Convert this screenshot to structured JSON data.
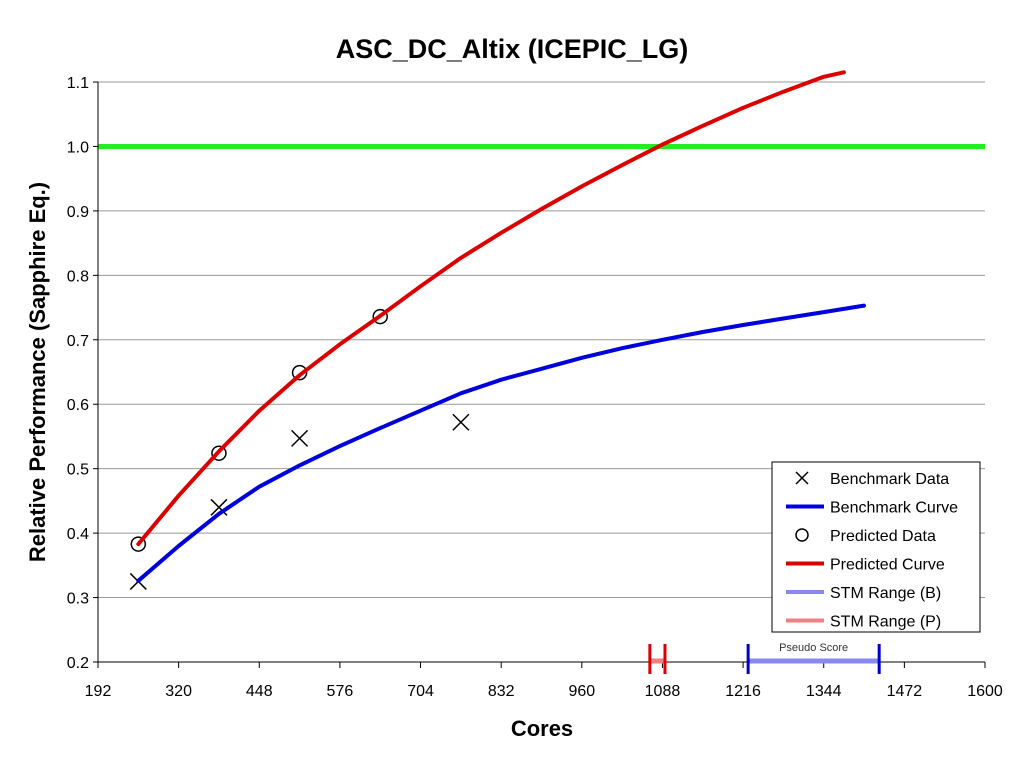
{
  "chart_data": {
    "type": "scatter",
    "title": "ASC_DC_Altix (ICEPIC_LG)",
    "xlabel": "Cores",
    "ylabel": "Relative Performance (Sapphire Eq.)",
    "xlim": [
      192,
      1600
    ],
    "ylim": [
      0.2,
      1.1
    ],
    "xticks": [
      "192",
      "320",
      "448",
      "576",
      "704",
      "832",
      "960",
      "1088",
      "1216",
      "1344",
      "1472",
      "1600"
    ],
    "yticks": [
      "0.2",
      "0.3",
      "0.4",
      "0.5",
      "0.6",
      "0.7",
      "0.8",
      "0.9",
      "1.0",
      "1.1"
    ],
    "grid": "horizontal",
    "legend_position": "bottom-right",
    "reference_line": {
      "y": 1.0,
      "color": "#22ee22"
    },
    "series": [
      {
        "name": "Benchmark Data",
        "kind": "markers",
        "marker": "x",
        "color": "#000000",
        "points": [
          {
            "x": 256,
            "y": 0.325
          },
          {
            "x": 384,
            "y": 0.44
          },
          {
            "x": 512,
            "y": 0.547
          },
          {
            "x": 768,
            "y": 0.572
          }
        ]
      },
      {
        "name": "Benchmark Curve",
        "kind": "line",
        "color": "#0000dd",
        "points": [
          {
            "x": 256,
            "y": 0.326
          },
          {
            "x": 320,
            "y": 0.38
          },
          {
            "x": 384,
            "y": 0.43
          },
          {
            "x": 448,
            "y": 0.472
          },
          {
            "x": 512,
            "y": 0.505
          },
          {
            "x": 576,
            "y": 0.535
          },
          {
            "x": 640,
            "y": 0.563
          },
          {
            "x": 704,
            "y": 0.59
          },
          {
            "x": 768,
            "y": 0.617
          },
          {
            "x": 832,
            "y": 0.638
          },
          {
            "x": 896,
            "y": 0.655
          },
          {
            "x": 960,
            "y": 0.672
          },
          {
            "x": 1024,
            "y": 0.687
          },
          {
            "x": 1088,
            "y": 0.7
          },
          {
            "x": 1152,
            "y": 0.712
          },
          {
            "x": 1216,
            "y": 0.723
          },
          {
            "x": 1280,
            "y": 0.733
          },
          {
            "x": 1344,
            "y": 0.743
          },
          {
            "x": 1408,
            "y": 0.753
          }
        ]
      },
      {
        "name": "Predicted Data",
        "kind": "markers",
        "marker": "circle",
        "color": "#000000",
        "points": [
          {
            "x": 256,
            "y": 0.383
          },
          {
            "x": 384,
            "y": 0.524
          },
          {
            "x": 512,
            "y": 0.649
          },
          {
            "x": 640,
            "y": 0.736
          }
        ]
      },
      {
        "name": "Predicted Curve",
        "kind": "line",
        "color": "#dd0000",
        "points": [
          {
            "x": 256,
            "y": 0.383
          },
          {
            "x": 320,
            "y": 0.458
          },
          {
            "x": 384,
            "y": 0.527
          },
          {
            "x": 448,
            "y": 0.59
          },
          {
            "x": 512,
            "y": 0.645
          },
          {
            "x": 576,
            "y": 0.693
          },
          {
            "x": 640,
            "y": 0.737
          },
          {
            "x": 704,
            "y": 0.783
          },
          {
            "x": 768,
            "y": 0.827
          },
          {
            "x": 832,
            "y": 0.866
          },
          {
            "x": 896,
            "y": 0.903
          },
          {
            "x": 960,
            "y": 0.938
          },
          {
            "x": 1024,
            "y": 0.971
          },
          {
            "x": 1088,
            "y": 1.003
          },
          {
            "x": 1152,
            "y": 1.032
          },
          {
            "x": 1216,
            "y": 1.06
          },
          {
            "x": 1280,
            "y": 1.085
          },
          {
            "x": 1344,
            "y": 1.108
          },
          {
            "x": 1376,
            "y": 1.115
          }
        ]
      }
    ],
    "ranges": [
      {
        "name": "STM Range (B)",
        "color": "#8888ee",
        "edge_color": "#0000cc",
        "x_start": 1224,
        "x_end": 1432,
        "y": 0.2
      },
      {
        "name": "STM Range (P)",
        "color": "#f08080",
        "edge_color": "#dd0000",
        "x_start": 1068,
        "x_end": 1092,
        "y": 0.2
      }
    ],
    "annotations": [
      {
        "text": "Pseudo Score",
        "x": 1328,
        "y": 0.2
      }
    ],
    "legend": [
      {
        "label": "Benchmark Data",
        "symbol": "x",
        "color": "#000000"
      },
      {
        "label": "Benchmark Curve",
        "symbol": "line",
        "color": "#0000dd"
      },
      {
        "label": "Predicted Data",
        "symbol": "circle",
        "color": "#000000"
      },
      {
        "label": "Predicted Curve",
        "symbol": "line",
        "color": "#dd0000"
      },
      {
        "label": "STM Range (B)",
        "symbol": "line",
        "color": "#8888ee"
      },
      {
        "label": "STM Range (P)",
        "symbol": "line",
        "color": "#f08080"
      }
    ]
  }
}
